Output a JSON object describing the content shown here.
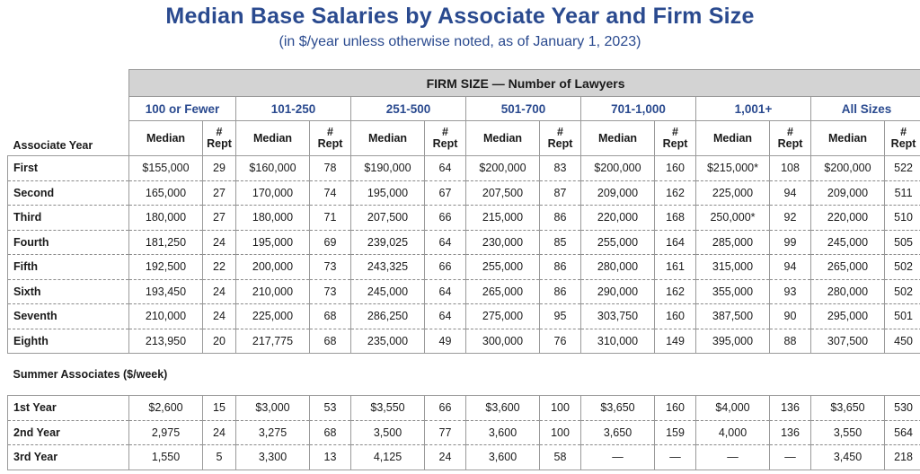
{
  "title": "Median Base Salaries by Associate Year and Firm Size",
  "subtitle": "(in $/year unless otherwise noted, as of January 1, 2023)",
  "firm_size_header": "FIRM SIZE — Number of Lawyers",
  "row_header": "Associate Year",
  "groups": [
    "100 or Fewer",
    "101-250",
    "251-500",
    "501-700",
    "701-1,000",
    "1,001+",
    "All Sizes"
  ],
  "sub_median": "Median",
  "sub_rept_line1": "#",
  "sub_rept_line2": "Rept",
  "rows": [
    {
      "label": "First",
      "cells": [
        "$155,000",
        "29",
        "$160,000",
        "78",
        "$190,000",
        "64",
        "$200,000",
        "83",
        "$200,000",
        "160",
        "$215,000*",
        "108",
        "$200,000",
        "522"
      ]
    },
    {
      "label": "Second",
      "cells": [
        "165,000",
        "27",
        "170,000",
        "74",
        "195,000",
        "67",
        "207,500",
        "87",
        "209,000",
        "162",
        "225,000",
        "94",
        "209,000",
        "511"
      ]
    },
    {
      "label": "Third",
      "cells": [
        "180,000",
        "27",
        "180,000",
        "71",
        "207,500",
        "66",
        "215,000",
        "86",
        "220,000",
        "168",
        "250,000*",
        "92",
        "220,000",
        "510"
      ]
    },
    {
      "label": "Fourth",
      "cells": [
        "181,250",
        "24",
        "195,000",
        "69",
        "239,025",
        "64",
        "230,000",
        "85",
        "255,000",
        "164",
        "285,000",
        "99",
        "245,000",
        "505"
      ]
    },
    {
      "label": "Fifth",
      "cells": [
        "192,500",
        "22",
        "200,000",
        "73",
        "243,325",
        "66",
        "255,000",
        "86",
        "280,000",
        "161",
        "315,000",
        "94",
        "265,000",
        "502"
      ]
    },
    {
      "label": "Sixth",
      "cells": [
        "193,450",
        "24",
        "210,000",
        "73",
        "245,000",
        "64",
        "265,000",
        "86",
        "290,000",
        "162",
        "355,000",
        "93",
        "280,000",
        "502"
      ]
    },
    {
      "label": "Seventh",
      "cells": [
        "210,000",
        "24",
        "225,000",
        "68",
        "286,250",
        "64",
        "275,000",
        "95",
        "303,750",
        "160",
        "387,500",
        "90",
        "295,000",
        "501"
      ]
    },
    {
      "label": "Eighth",
      "cells": [
        "213,950",
        "20",
        "217,775",
        "68",
        "235,000",
        "49",
        "300,000",
        "76",
        "310,000",
        "149",
        "395,000",
        "88",
        "307,500",
        "450"
      ]
    }
  ],
  "summer_label": "Summer Associates ($/week)",
  "summer_rows": [
    {
      "label": "1st Year",
      "cells": [
        "$2,600",
        "15",
        "$3,000",
        "53",
        "$3,550",
        "66",
        "$3,600",
        "100",
        "$3,650",
        "160",
        "$4,000",
        "136",
        "$3,650",
        "530"
      ]
    },
    {
      "label": "2nd Year",
      "cells": [
        "2,975",
        "24",
        "3,275",
        "68",
        "3,500",
        "77",
        "3,600",
        "100",
        "3,650",
        "159",
        "4,000",
        "136",
        "3,550",
        "564"
      ]
    },
    {
      "label": "3rd Year",
      "cells": [
        "1,550",
        "5",
        "3,300",
        "13",
        "4,125",
        "24",
        "3,600",
        "58",
        "—",
        "—",
        "—",
        "—",
        "3,450",
        "218"
      ]
    }
  ]
}
